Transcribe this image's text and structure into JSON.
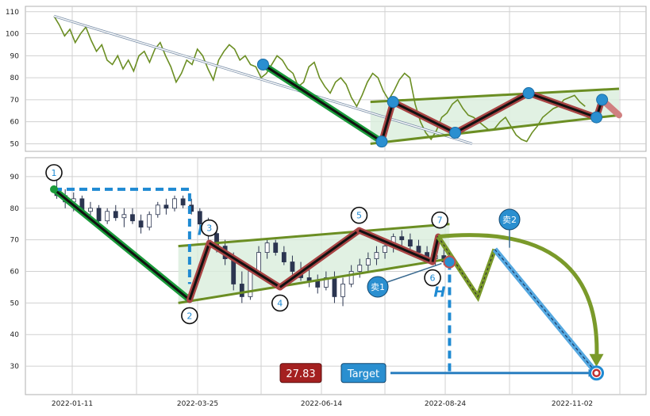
{
  "colors": {
    "grid": "#d0d0d0",
    "frame": "#b0b0b0",
    "price_line": "#6b8e23",
    "candle": "#2b3550",
    "green_leg": "#1a9a3a",
    "red_leg": "#a84444",
    "channel_line": "#6b8e23",
    "channel_fill": "#d9eedc",
    "blue_dot": "#2a8fd0",
    "label_box_red": "#a42020",
    "label_box_blue": "#2a8fd0",
    "dashed_blue": "#1f8ad2",
    "projection_olive": "#7a9a2a",
    "projection_blue": "#55a8e0",
    "text": "#222222",
    "pattern_letter": "#1f8ad2"
  },
  "chart_data": [
    {
      "type": "line",
      "panel": "top",
      "y_ticks": [
        "110",
        "100",
        "90",
        "80",
        "70",
        "60",
        "50"
      ],
      "ylim": [
        48,
        111
      ],
      "grid": true,
      "series": [
        {
          "values": [
            108,
            104,
            99,
            102,
            96,
            100,
            103,
            97,
            92,
            95,
            88,
            86,
            90,
            84,
            88,
            83,
            90,
            92,
            87,
            93,
            96,
            90,
            85,
            78,
            82,
            88,
            86,
            93,
            90,
            84,
            79,
            88,
            92,
            95,
            93,
            88,
            90,
            86,
            85,
            80,
            82,
            86,
            90,
            88,
            84,
            82,
            76,
            78,
            85,
            87,
            80,
            76,
            73,
            78,
            80,
            77,
            71,
            67,
            72,
            78,
            82,
            80,
            74,
            70,
            74,
            79,
            82,
            80,
            68,
            60,
            55,
            52,
            56,
            62,
            64,
            68,
            70,
            66,
            63,
            62,
            60,
            58,
            56,
            57,
            60,
            62,
            58,
            54,
            52,
            51,
            55,
            58,
            62,
            64,
            66,
            67,
            70,
            71,
            72,
            69,
            67
          ]
        }
      ],
      "pattern_points": [
        {
          "t": 0.37,
          "v": 86
        },
        {
          "t": 0.58,
          "v": 51
        },
        {
          "t": 0.6,
          "v": 69
        },
        {
          "t": 0.71,
          "v": 55
        },
        {
          "t": 0.84,
          "v": 73
        },
        {
          "t": 0.96,
          "v": 62
        },
        {
          "t": 0.97,
          "v": 70
        },
        {
          "t": 1.0,
          "v": 63
        }
      ],
      "trend_arrow": {
        "from": {
          "t": 0.0,
          "v": 108
        },
        "to": {
          "t": 0.74,
          "v": 50
        }
      },
      "channel_upper": {
        "from": {
          "t": 0.56,
          "v": 69
        },
        "to": {
          "t": 1.0,
          "v": 75
        }
      },
      "channel_lower": {
        "from": {
          "t": 0.56,
          "v": 50
        },
        "to": {
          "t": 1.0,
          "v": 63
        }
      }
    },
    {
      "type": "candlestick",
      "panel": "bottom",
      "x_ticks": [
        "2022-01-11",
        "2022-03-25",
        "2022-06-14",
        "2022-08-24",
        "2022-11-02"
      ],
      "y_ticks": [
        "90",
        "80",
        "70",
        "60",
        "50",
        "40",
        "30"
      ],
      "ylim": [
        22,
        95
      ],
      "grid": true,
      "candles": [
        {
          "o": 86,
          "h": 89,
          "l": 83,
          "c": 84
        },
        {
          "o": 84,
          "h": 86,
          "l": 80,
          "c": 82
        },
        {
          "o": 82,
          "h": 85,
          "l": 79,
          "c": 83
        },
        {
          "o": 83,
          "h": 84,
          "l": 78,
          "c": 79
        },
        {
          "o": 79,
          "h": 82,
          "l": 77,
          "c": 80
        },
        {
          "o": 80,
          "h": 81,
          "l": 75,
          "c": 76
        },
        {
          "o": 76,
          "h": 80,
          "l": 75,
          "c": 79
        },
        {
          "o": 79,
          "h": 81,
          "l": 76,
          "c": 77
        },
        {
          "o": 77,
          "h": 80,
          "l": 74,
          "c": 78
        },
        {
          "o": 78,
          "h": 80,
          "l": 75,
          "c": 76
        },
        {
          "o": 76,
          "h": 78,
          "l": 72,
          "c": 74
        },
        {
          "o": 74,
          "h": 79,
          "l": 73,
          "c": 78
        },
        {
          "o": 78,
          "h": 82,
          "l": 77,
          "c": 81
        },
        {
          "o": 81,
          "h": 83,
          "l": 78,
          "c": 80
        },
        {
          "o": 80,
          "h": 84,
          "l": 79,
          "c": 83
        },
        {
          "o": 83,
          "h": 84,
          "l": 80,
          "c": 81
        },
        {
          "o": 81,
          "h": 83,
          "l": 78,
          "c": 79
        },
        {
          "o": 79,
          "h": 80,
          "l": 74,
          "c": 75
        },
        {
          "o": 75,
          "h": 77,
          "l": 70,
          "c": 72
        },
        {
          "o": 72,
          "h": 74,
          "l": 66,
          "c": 68
        },
        {
          "o": 68,
          "h": 70,
          "l": 62,
          "c": 64
        },
        {
          "o": 64,
          "h": 66,
          "l": 54,
          "c": 56
        },
        {
          "o": 56,
          "h": 60,
          "l": 50,
          "c": 52
        },
        {
          "o": 52,
          "h": 62,
          "l": 51,
          "c": 60
        },
        {
          "o": 60,
          "h": 68,
          "l": 59,
          "c": 66
        },
        {
          "o": 66,
          "h": 70,
          "l": 64,
          "c": 69
        },
        {
          "o": 69,
          "h": 70,
          "l": 65,
          "c": 66
        },
        {
          "o": 66,
          "h": 68,
          "l": 62,
          "c": 63
        },
        {
          "o": 63,
          "h": 65,
          "l": 59,
          "c": 60
        },
        {
          "o": 60,
          "h": 63,
          "l": 57,
          "c": 58
        },
        {
          "o": 58,
          "h": 61,
          "l": 55,
          "c": 57
        },
        {
          "o": 57,
          "h": 59,
          "l": 53,
          "c": 55
        },
        {
          "o": 55,
          "h": 60,
          "l": 54,
          "c": 58
        },
        {
          "o": 58,
          "h": 60,
          "l": 50,
          "c": 52
        },
        {
          "o": 52,
          "h": 58,
          "l": 49,
          "c": 56
        },
        {
          "o": 56,
          "h": 62,
          "l": 55,
          "c": 60
        },
        {
          "o": 60,
          "h": 64,
          "l": 58,
          "c": 62
        },
        {
          "o": 62,
          "h": 66,
          "l": 60,
          "c": 64
        },
        {
          "o": 64,
          "h": 68,
          "l": 62,
          "c": 66
        },
        {
          "o": 66,
          "h": 70,
          "l": 64,
          "c": 68
        },
        {
          "o": 68,
          "h": 72,
          "l": 66,
          "c": 71
        },
        {
          "o": 71,
          "h": 73,
          "l": 68,
          "c": 70
        },
        {
          "o": 70,
          "h": 72,
          "l": 67,
          "c": 68
        },
        {
          "o": 68,
          "h": 70,
          "l": 65,
          "c": 66
        },
        {
          "o": 66,
          "h": 68,
          "l": 63,
          "c": 64
        },
        {
          "o": 64,
          "h": 67,
          "l": 62,
          "c": 65
        },
        {
          "o": 65,
          "h": 67,
          "l": 62,
          "c": 63
        }
      ],
      "pattern_points": [
        {
          "label": "1",
          "t": 0.0,
          "v": 86
        },
        {
          "label": "2",
          "t": 0.24,
          "v": 51
        },
        {
          "label": "3",
          "t": 0.275,
          "v": 69
        },
        {
          "label": "4",
          "t": 0.4,
          "v": 55
        },
        {
          "label": "5",
          "t": 0.54,
          "v": 73
        },
        {
          "label": "6",
          "t": 0.67,
          "v": 63
        },
        {
          "label": "7",
          "t": 0.68,
          "v": 71
        }
      ],
      "channel_upper": {
        "from": {
          "t": 0.22,
          "v": 68
        },
        "to": {
          "t": 0.7,
          "v": 75
        }
      },
      "channel_lower": {
        "from": {
          "t": 0.22,
          "v": 50
        },
        "to": {
          "t": 0.7,
          "v": 64
        }
      },
      "breakout": {
        "t": 0.7,
        "v": 63
      },
      "height_marker_label": "H",
      "projection": [
        {
          "t": 0.68,
          "v": 71
        },
        {
          "t": 0.75,
          "v": 52
        },
        {
          "t": 0.78,
          "v": 67
        },
        {
          "t": 0.96,
          "v": 28
        }
      ],
      "target_value": 27.83,
      "target_label": "Target",
      "sell_1_label": "卖1",
      "sell_2_label": "卖2"
    }
  ]
}
